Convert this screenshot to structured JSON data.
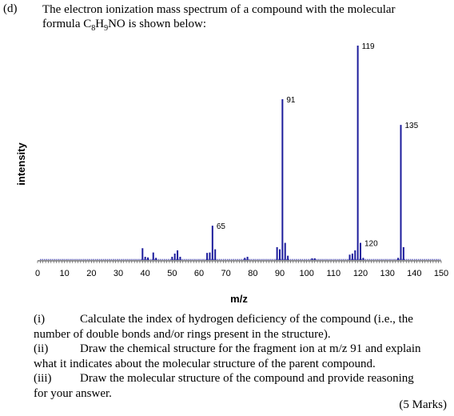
{
  "question": {
    "label": "(d)",
    "intro_line1": "The electron ionization mass spectrum of a compound with the molecular",
    "formula_prefix": "formula C",
    "formula_sub1": "8",
    "formula_mid1": "H",
    "formula_sub2": "9",
    "formula_suffix": "NO is shown below:"
  },
  "chart_data": {
    "type": "bar",
    "xlabel": "m/z",
    "ylabel": "intensity",
    "xlim": [
      0,
      150
    ],
    "xticks": [
      0,
      10,
      20,
      30,
      40,
      50,
      60,
      70,
      80,
      90,
      100,
      110,
      120,
      130,
      140,
      150
    ],
    "ylim": [
      0,
      100
    ],
    "yaxis_ticks_shown": false,
    "grid": false,
    "color": "#1c1c9c",
    "peaks": [
      {
        "mz": 39,
        "rel": 5.5
      },
      {
        "mz": 40,
        "rel": 1.5
      },
      {
        "mz": 41,
        "rel": 1.2
      },
      {
        "mz": 43,
        "rel": 3.5
      },
      {
        "mz": 44,
        "rel": 1
      },
      {
        "mz": 50,
        "rel": 1.5
      },
      {
        "mz": 51,
        "rel": 3
      },
      {
        "mz": 52,
        "rel": 4.5
      },
      {
        "mz": 53,
        "rel": 1.5
      },
      {
        "mz": 63,
        "rel": 3.3
      },
      {
        "mz": 64,
        "rel": 3.5
      },
      {
        "mz": 65,
        "rel": 16
      },
      {
        "mz": 66,
        "rel": 5
      },
      {
        "mz": 77,
        "rel": 1
      },
      {
        "mz": 78,
        "rel": 1.5
      },
      {
        "mz": 89,
        "rel": 6
      },
      {
        "mz": 90,
        "rel": 5
      },
      {
        "mz": 91,
        "rel": 75
      },
      {
        "mz": 92,
        "rel": 8
      },
      {
        "mz": 93,
        "rel": 2
      },
      {
        "mz": 102,
        "rel": 0.8
      },
      {
        "mz": 103,
        "rel": 0.8
      },
      {
        "mz": 116,
        "rel": 2.5
      },
      {
        "mz": 117,
        "rel": 3
      },
      {
        "mz": 118,
        "rel": 4.5
      },
      {
        "mz": 119,
        "rel": 100
      },
      {
        "mz": 120,
        "rel": 8
      },
      {
        "mz": 121,
        "rel": 1
      },
      {
        "mz": 134,
        "rel": 1
      },
      {
        "mz": 135,
        "rel": 63
      },
      {
        "mz": 136,
        "rel": 6
      }
    ],
    "annotations": [
      {
        "mz": 65,
        "text": "65"
      },
      {
        "mz": 91,
        "text": "91"
      },
      {
        "mz": 119,
        "text": "119"
      },
      {
        "mz": 120,
        "text": "120"
      },
      {
        "mz": 135,
        "text": "135"
      }
    ]
  },
  "parts": [
    {
      "num": "(i)",
      "line1": "Calculate the index of hydrogen deficiency of the compound (i.e., the",
      "line2": "number of double bonds and/or rings present in the structure)."
    },
    {
      "num": "(ii)",
      "line1": "Draw the chemical structure for the fragment ion at m/z 91 and explain",
      "line2": "what it indicates about the molecular structure of the parent compound."
    },
    {
      "num": "(iii)",
      "line1": "Draw the molecular structure of the compound and provide reasoning",
      "line2": "for your answer."
    }
  ],
  "marks": "(5 Marks)"
}
